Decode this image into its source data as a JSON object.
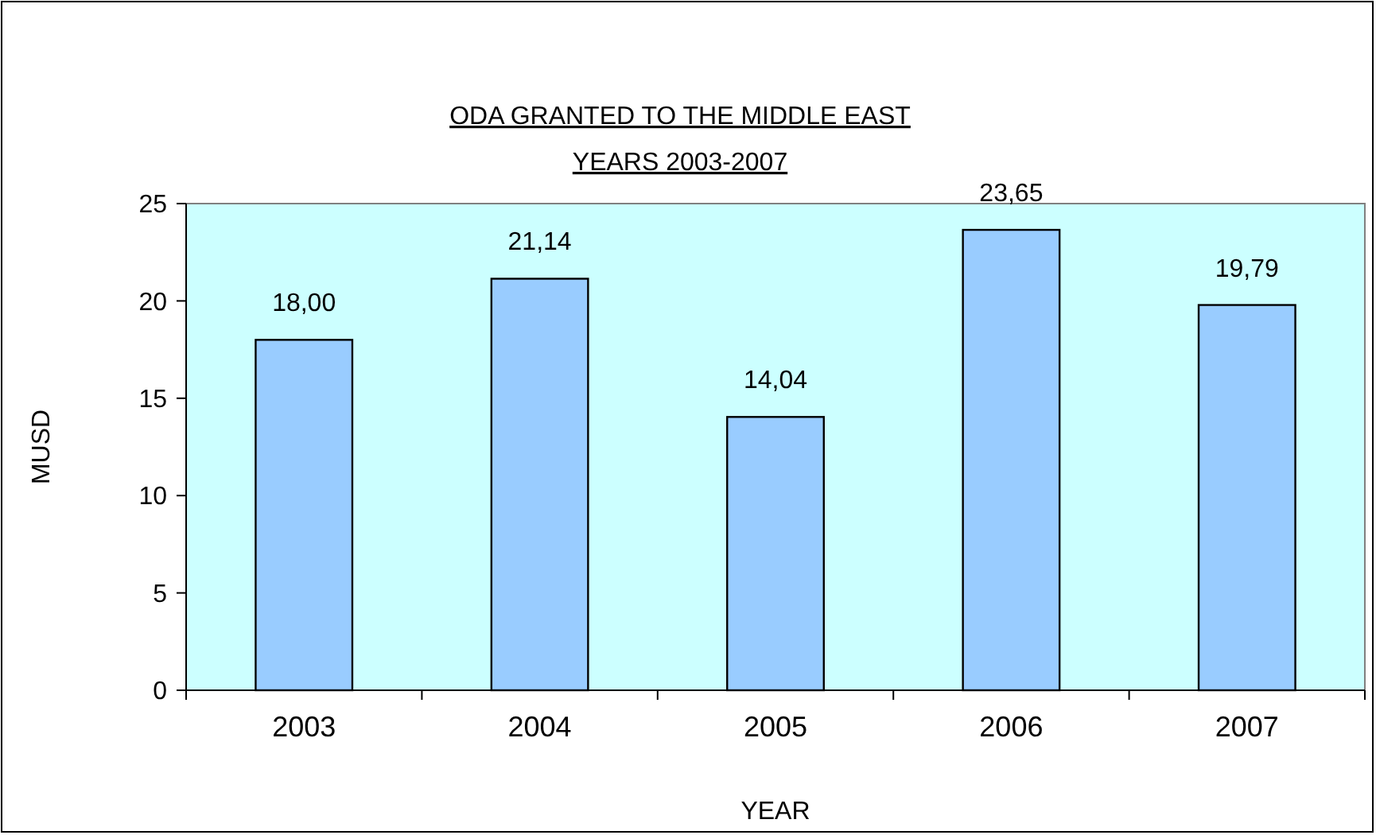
{
  "chart_data": {
    "type": "bar",
    "title": "ODA GRANTED TO THE MIDDLE EAST",
    "subtitle": "YEARS 2003-2007",
    "xlabel": "YEAR",
    "ylabel": "MUSD",
    "categories": [
      "2003",
      "2004",
      "2005",
      "2006",
      "2007"
    ],
    "values": [
      18.0,
      21.14,
      14.04,
      23.65,
      19.79
    ],
    "value_labels": [
      "18,00",
      "21,14",
      "14,04",
      "23,65",
      "19,79"
    ],
    "color": "#99ccff",
    "ylim": [
      0,
      25
    ],
    "yticks": [
      0,
      5,
      10,
      15,
      20,
      25
    ],
    "grid": false
  }
}
